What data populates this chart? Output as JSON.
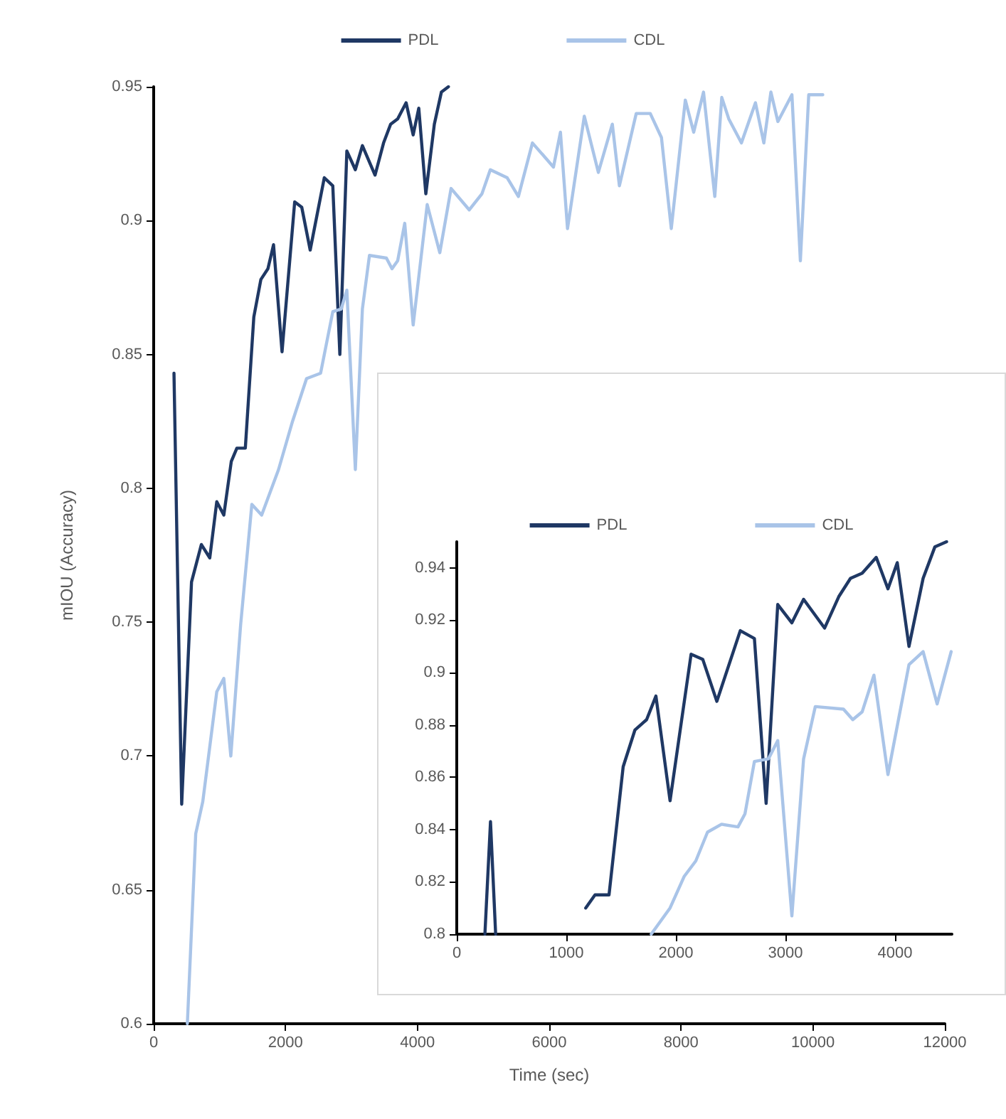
{
  "chart_data": [
    {
      "type": "line",
      "xlabel": "Time (sec)",
      "ylabel": "mIOU (Accuracy)",
      "xlim": [
        0,
        12000
      ],
      "xticks": [
        0,
        2000,
        4000,
        6000,
        8000,
        10000,
        12000
      ],
      "ylim": [
        0.6,
        0.95
      ],
      "yticks": [
        0.6,
        0.65,
        0.7,
        0.75,
        0.8,
        0.85,
        0.9,
        0.95
      ],
      "grid": false,
      "legend": "top",
      "marker": "none",
      "line_style": "solid",
      "series": [
        {
          "name": "PDL",
          "color": "#1f3864",
          "x": [
            308,
            425,
            574,
            723,
            851,
            957,
            1064,
            1177,
            1262,
            1390,
            1519,
            1626,
            1733,
            1818,
            1947,
            2139,
            2246,
            2374,
            2588,
            2717,
            2824,
            2930,
            3059,
            3166,
            3358,
            3487,
            3594,
            3701,
            3829,
            3936,
            4021,
            4128,
            4257,
            4364,
            4471
          ],
          "values": [
            0.843,
            0.682,
            0.765,
            0.779,
            0.774,
            0.795,
            0.79,
            0.81,
            0.815,
            0.815,
            0.864,
            0.878,
            0.882,
            0.891,
            0.851,
            0.907,
            0.905,
            0.889,
            0.916,
            0.913,
            0.85,
            0.926,
            0.919,
            0.928,
            0.917,
            0.929,
            0.936,
            0.938,
            0.944,
            0.932,
            0.942,
            0.91,
            0.936,
            0.948,
            0.95
          ]
        },
        {
          "name": "CDL",
          "color": "#a9c4e8",
          "x": [
            511,
            638,
            745,
            957,
            1064,
            1170,
            1319,
            1489,
            1638,
            1894,
            2106,
            2319,
            2532,
            2717,
            2845,
            2930,
            3059,
            3166,
            3273,
            3530,
            3615,
            3701,
            3808,
            3936,
            4149,
            4340,
            4511,
            4787,
            4979,
            5106,
            5362,
            5532,
            5745,
            6064,
            6170,
            6277,
            6532,
            6745,
            6957,
            7064,
            7319,
            7532,
            7702,
            7851,
            8064,
            8191,
            8340,
            8511,
            8617,
            8723,
            8915,
            9128,
            9255,
            9362,
            9468,
            9681,
            9809,
            9936,
            10149
          ],
          "values": [
            0.6,
            0.671,
            0.683,
            0.724,
            0.729,
            0.7,
            0.749,
            0.794,
            0.79,
            0.807,
            0.825,
            0.841,
            0.843,
            0.866,
            0.867,
            0.874,
            0.807,
            0.867,
            0.887,
            0.886,
            0.882,
            0.885,
            0.899,
            0.861,
            0.906,
            0.888,
            0.912,
            0.904,
            0.91,
            0.919,
            0.916,
            0.909,
            0.929,
            0.92,
            0.933,
            0.897,
            0.939,
            0.918,
            0.936,
            0.913,
            0.94,
            0.94,
            0.931,
            0.897,
            0.945,
            0.933,
            0.948,
            0.909,
            0.946,
            0.938,
            0.929,
            0.944,
            0.929,
            0.948,
            0.937,
            0.947,
            0.885,
            0.947,
            0.947
          ]
        }
      ]
    },
    {
      "type": "line",
      "xlim": [
        0,
        4520
      ],
      "xticks": [
        0,
        1000,
        2000,
        3000,
        4000
      ],
      "ylim": [
        0.8,
        0.95
      ],
      "yticks": [
        0.8,
        0.82,
        0.84,
        0.86,
        0.88,
        0.9,
        0.92,
        0.94
      ],
      "grid": false,
      "legend": "top",
      "marker": "none",
      "line_style": "solid",
      "series": [
        {
          "name": "PDL",
          "color": "#1f3864",
          "x": [
            257,
            308,
            355,
            700,
            1177,
            1262,
            1390,
            1519,
            1626,
            1733,
            1818,
            1947,
            2139,
            2246,
            2374,
            2588,
            2717,
            2824,
            2930,
            3059,
            3166,
            3358,
            3487,
            3594,
            3701,
            3829,
            3936,
            4021,
            4128,
            4257,
            4364,
            4471
          ],
          "values": [
            0.8,
            0.843,
            0.8,
            null,
            0.81,
            0.815,
            0.815,
            0.864,
            0.878,
            0.882,
            0.891,
            0.851,
            0.907,
            0.905,
            0.889,
            0.916,
            0.913,
            0.85,
            0.926,
            0.919,
            0.928,
            0.917,
            0.929,
            0.936,
            0.938,
            0.944,
            0.932,
            0.942,
            0.91,
            0.936,
            0.948,
            0.95
          ]
        },
        {
          "name": "CDL",
          "color": "#a9c4e8",
          "x": [
            1775,
            1947,
            2075,
            2182,
            2289,
            2417,
            2567,
            2631,
            2717,
            2845,
            2930,
            3059,
            3166,
            3273,
            3530,
            3615,
            3701,
            3808,
            3936,
            4128,
            4257,
            4385,
            4513
          ],
          "values": [
            0.8,
            0.81,
            0.822,
            0.828,
            0.839,
            0.842,
            0.841,
            0.846,
            0.866,
            0.867,
            0.874,
            0.807,
            0.867,
            0.887,
            0.886,
            0.882,
            0.885,
            0.899,
            0.861,
            0.903,
            0.908,
            0.888,
            0.908
          ]
        }
      ]
    }
  ]
}
